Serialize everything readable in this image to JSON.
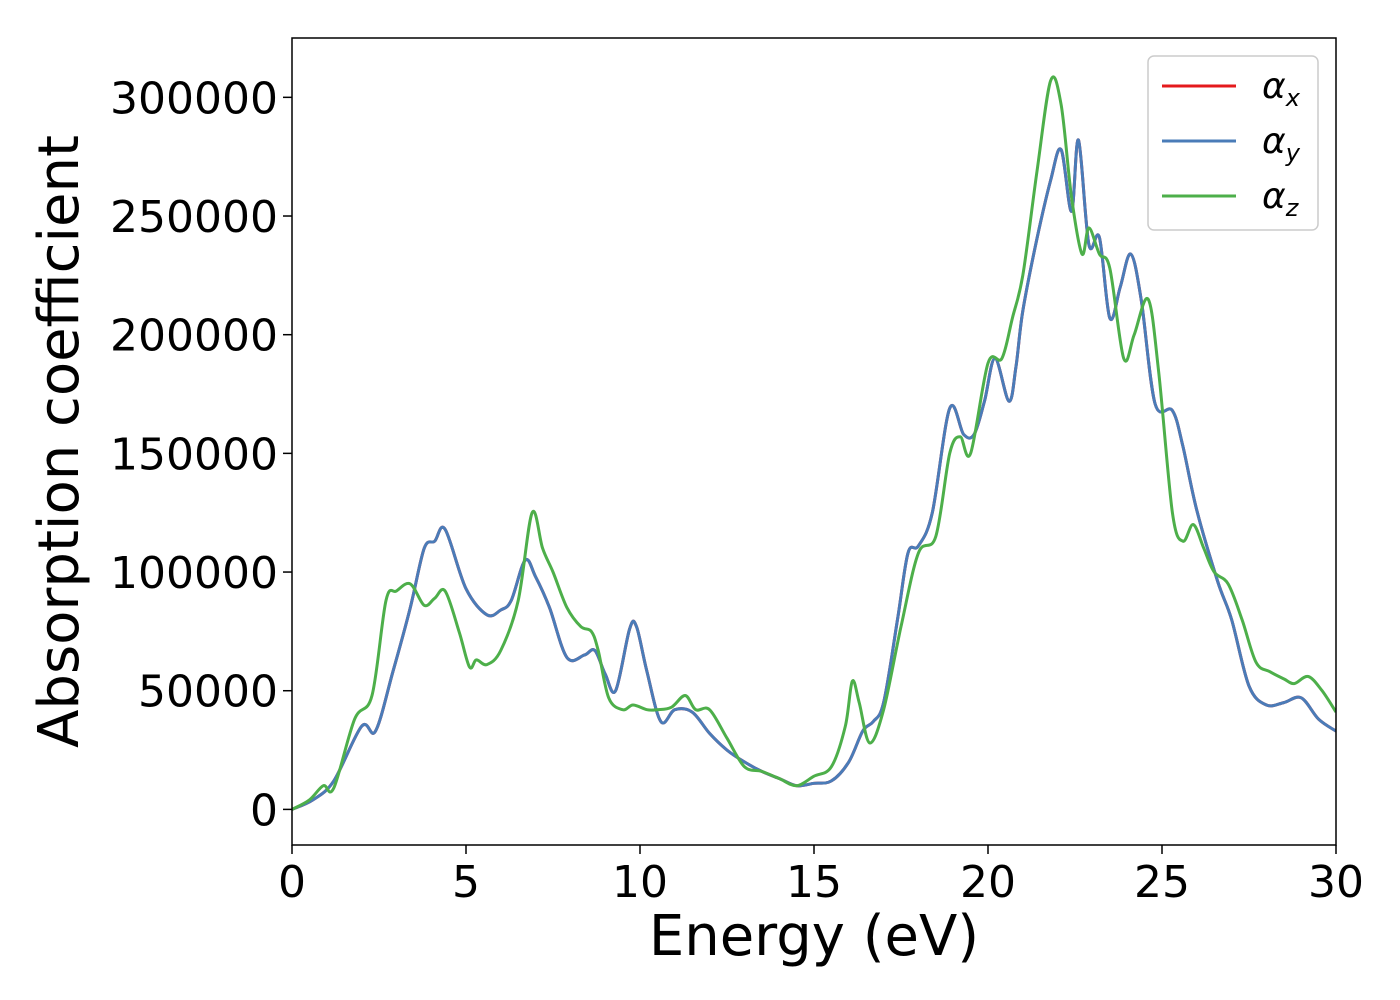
{
  "chart_data": {
    "type": "line",
    "title": "",
    "xlabel": "Energy (eV)",
    "ylabel": "Absorption coefficient",
    "xlim": [
      0,
      30
    ],
    "ylim": [
      -15000,
      325000
    ],
    "xticks": [
      0,
      5,
      10,
      15,
      20,
      25,
      30
    ],
    "xtick_labels": [
      "0",
      "5",
      "10",
      "15",
      "20",
      "25",
      "30"
    ],
    "yticks": [
      0,
      50000,
      100000,
      150000,
      200000,
      250000,
      300000
    ],
    "ytick_labels": [
      "0",
      "50000",
      "100000",
      "150000",
      "200000",
      "250000",
      "300000"
    ],
    "grid": false,
    "legend": "top-right",
    "series": [
      {
        "name": "α",
        "sub": "x",
        "color": "#e41a1c",
        "x": [
          0,
          0.6,
          1.2,
          2,
          2.4,
          2.9,
          3.4,
          3.8,
          4.1,
          4.4,
          5.0,
          5.6,
          6.0,
          6.3,
          6.7,
          7.0,
          7.4,
          7.9,
          8.4,
          8.7,
          9.0,
          9.3,
          9.7,
          9.9,
          10.2,
          10.6,
          11.0,
          11.5,
          12.0,
          12.5,
          13.0,
          13.5,
          14.0,
          14.5,
          15.0,
          15.5,
          16.0,
          16.4,
          16.7,
          17.0,
          17.4,
          17.7,
          18.0,
          18.4,
          18.9,
          19.3,
          19.6,
          19.9,
          20.2,
          20.6,
          20.8,
          21.0,
          21.4,
          21.8,
          22.1,
          22.4,
          22.6,
          22.9,
          23.2,
          23.5,
          23.8,
          24.1,
          24.4,
          24.8,
          25.3,
          25.6,
          26.0,
          26.6,
          27.0,
          27.5,
          28.0,
          28.5,
          29.0,
          29.5,
          30
        ],
        "y": [
          0,
          4000,
          12000,
          35000,
          33000,
          58000,
          85000,
          110000,
          113000,
          118000,
          93000,
          82000,
          84000,
          88000,
          105000,
          98000,
          85000,
          64000,
          65000,
          67000,
          57000,
          50000,
          76000,
          77000,
          58000,
          37000,
          42000,
          41000,
          32000,
          25000,
          20000,
          16000,
          13000,
          10000,
          11000,
          12000,
          20000,
          33000,
          37000,
          45000,
          80000,
          108000,
          111000,
          125000,
          169000,
          158000,
          158000,
          172000,
          190000,
          172000,
          186000,
          210000,
          240000,
          265000,
          278000,
          252000,
          282000,
          238000,
          241000,
          207000,
          220000,
          234000,
          215000,
          171000,
          168000,
          153000,
          126000,
          96000,
          80000,
          52000,
          44000,
          45000,
          47000,
          38000,
          33000
        ]
      },
      {
        "name": "α",
        "sub": "y",
        "color": "#4a7cb8",
        "x": [
          0,
          0.6,
          1.2,
          2,
          2.4,
          2.9,
          3.4,
          3.8,
          4.1,
          4.4,
          5.0,
          5.6,
          6.0,
          6.3,
          6.7,
          7.0,
          7.4,
          7.9,
          8.4,
          8.7,
          9.0,
          9.3,
          9.7,
          9.9,
          10.2,
          10.6,
          11.0,
          11.5,
          12.0,
          12.5,
          13.0,
          13.5,
          14.0,
          14.5,
          15.0,
          15.5,
          16.0,
          16.4,
          16.7,
          17.0,
          17.4,
          17.7,
          18.0,
          18.4,
          18.9,
          19.3,
          19.6,
          19.9,
          20.2,
          20.6,
          20.8,
          21.0,
          21.4,
          21.8,
          22.1,
          22.4,
          22.6,
          22.9,
          23.2,
          23.5,
          23.8,
          24.1,
          24.4,
          24.8,
          25.3,
          25.6,
          26.0,
          26.6,
          27.0,
          27.5,
          28.0,
          28.5,
          29.0,
          29.5,
          30
        ],
        "y": [
          0,
          4000,
          12000,
          35000,
          33000,
          58000,
          85000,
          110000,
          113000,
          118000,
          93000,
          82000,
          84000,
          88000,
          105000,
          98000,
          85000,
          64000,
          65000,
          67000,
          57000,
          50000,
          76000,
          77000,
          58000,
          37000,
          42000,
          41000,
          32000,
          25000,
          20000,
          16000,
          13000,
          10000,
          11000,
          12000,
          20000,
          33000,
          37000,
          45000,
          80000,
          108000,
          111000,
          125000,
          169000,
          158000,
          158000,
          172000,
          190000,
          172000,
          186000,
          210000,
          240000,
          265000,
          278000,
          252000,
          282000,
          238000,
          241000,
          207000,
          220000,
          234000,
          215000,
          171000,
          168000,
          153000,
          126000,
          96000,
          80000,
          52000,
          44000,
          45000,
          47000,
          38000,
          33000
        ]
      },
      {
        "name": "α",
        "sub": "z",
        "color": "#4daf4a",
        "x": [
          0,
          0.5,
          0.9,
          1.2,
          1.8,
          2.3,
          2.7,
          3.0,
          3.4,
          3.8,
          4.1,
          4.4,
          4.8,
          5.1,
          5.3,
          5.6,
          6.0,
          6.5,
          6.9,
          7.2,
          7.5,
          7.9,
          8.3,
          8.6,
          8.8,
          9.1,
          9.5,
          9.8,
          10.2,
          10.5,
          10.9,
          11.3,
          11.6,
          12.0,
          12.5,
          13.0,
          13.5,
          14.0,
          14.5,
          15.0,
          15.5,
          15.9,
          16.1,
          16.3,
          16.6,
          17.0,
          17.5,
          18.0,
          18.5,
          18.9,
          19.2,
          19.5,
          20.0,
          20.4,
          20.7,
          21.0,
          21.4,
          21.8,
          22.1,
          22.4,
          22.7,
          22.9,
          23.2,
          23.5,
          23.9,
          24.2,
          24.6,
          24.9,
          25.3,
          25.6,
          25.9,
          26.2,
          26.5,
          26.9,
          27.3,
          27.7,
          28.1,
          28.5,
          28.8,
          29.2,
          29.6,
          30
        ],
        "y": [
          0,
          4000,
          10000,
          9000,
          38000,
          48000,
          88000,
          92000,
          95000,
          86000,
          89000,
          92000,
          75000,
          60000,
          63000,
          61000,
          67000,
          88000,
          125000,
          110000,
          100000,
          85000,
          77000,
          75000,
          67000,
          47000,
          42000,
          44000,
          42000,
          42000,
          43000,
          48000,
          42000,
          42000,
          30000,
          18000,
          16000,
          13000,
          10000,
          14000,
          18000,
          35000,
          54000,
          45000,
          28000,
          42000,
          77000,
          108000,
          115000,
          150000,
          157000,
          150000,
          188000,
          190000,
          207000,
          225000,
          268000,
          307000,
          297000,
          258000,
          234000,
          245000,
          234000,
          228000,
          190000,
          200000,
          215000,
          185000,
          125000,
          113000,
          120000,
          110000,
          100000,
          95000,
          80000,
          62000,
          58000,
          55000,
          53000,
          56000,
          50000,
          41000
        ]
      }
    ]
  }
}
